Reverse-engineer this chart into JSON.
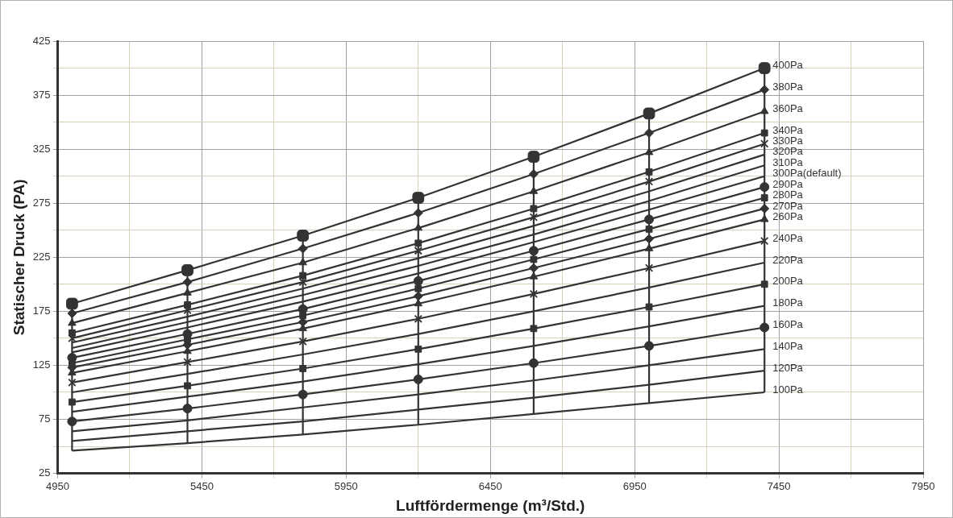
{
  "chart_data": {
    "type": "line",
    "xlabel": "Luftfördermenge (m³/Std.)",
    "ylabel": "Statischer Druck (PA)",
    "x": [
      5000,
      5400,
      5800,
      6200,
      6600,
      7000,
      7400
    ],
    "xlim": [
      4950,
      7950
    ],
    "xticks": [
      4950,
      {
        "value": 5200,
        "label": null
      },
      5450,
      {
        "value": 5700,
        "label": null
      },
      5950,
      {
        "value": 6200,
        "label": null
      },
      6450,
      {
        "value": 6700,
        "label": null
      },
      6950,
      {
        "value": 7200,
        "label": null
      },
      7450,
      {
        "value": 7700,
        "label": null
      },
      7950
    ],
    "ylim": [
      25,
      425
    ],
    "yticks": [
      25,
      {
        "value": 50,
        "label": null
      },
      75,
      {
        "value": 100,
        "label": null
      },
      125,
      {
        "value": 150,
        "label": null
      },
      175,
      {
        "value": 200,
        "label": null
      },
      225,
      {
        "value": 250,
        "label": null
      },
      275,
      {
        "value": 300,
        "label": null
      },
      325,
      {
        "value": 350,
        "label": null
      },
      375,
      {
        "value": 400,
        "label": null
      },
      425
    ],
    "grid": true,
    "legend": "right",
    "series": [
      {
        "name": "400Pa",
        "color": "#333333",
        "marker": "square",
        "values": [
          182,
          213,
          245,
          280,
          318,
          358,
          400
        ]
      },
      {
        "name": "380Pa",
        "color": "#333333",
        "marker": "diamond",
        "values": [
          173,
          202,
          233,
          266,
          302,
          340,
          380
        ]
      },
      {
        "name": "360Pa",
        "color": "#333333",
        "marker": "triangle",
        "values": [
          164,
          192,
          220,
          252,
          286,
          322,
          360
        ]
      },
      {
        "name": "340Pa",
        "color": "#333333",
        "marker": "square",
        "values": [
          155,
          181,
          208,
          238,
          270,
          304,
          340
        ]
      },
      {
        "name": "330Pa",
        "color": "#333333",
        "marker": "cross",
        "values": [
          150,
          176,
          202,
          231,
          262,
          295,
          330
        ]
      },
      {
        "name": "320Pa",
        "color": "#333333",
        "marker": "none",
        "values": [
          146,
          170,
          196,
          224,
          254,
          286,
          320
        ]
      },
      {
        "name": "310Pa",
        "color": "#333333",
        "marker": "none",
        "values": [
          141,
          165,
          190,
          217,
          246,
          277,
          310
        ]
      },
      {
        "name": "300Pa(default)",
        "color": "#333333",
        "marker": "none",
        "values": [
          137,
          160,
          184,
          210,
          239,
          269,
          300
        ]
      },
      {
        "name": "290Pa",
        "color": "#333333",
        "marker": "circle",
        "values": [
          132,
          154,
          177,
          203,
          231,
          260,
          290
        ]
      },
      {
        "name": "280Pa",
        "color": "#333333",
        "marker": "square",
        "values": [
          127,
          149,
          171,
          196,
          223,
          251,
          280
        ]
      },
      {
        "name": "270Pa",
        "color": "#333333",
        "marker": "diamond",
        "values": [
          123,
          144,
          165,
          189,
          215,
          242,
          270
        ]
      },
      {
        "name": "260Pa",
        "color": "#333333",
        "marker": "triangle",
        "values": [
          118,
          138,
          159,
          182,
          207,
          233,
          260
        ]
      },
      {
        "name": "240Pa",
        "color": "#333333",
        "marker": "cross",
        "values": [
          109,
          128,
          147,
          168,
          191,
          215,
          240
        ]
      },
      {
        "name": "220Pa",
        "color": "#333333",
        "marker": "none",
        "values": [
          100,
          117,
          135,
          154,
          175,
          197,
          220
        ]
      },
      {
        "name": "200Pa",
        "color": "#333333",
        "marker": "square",
        "values": [
          91,
          106,
          122,
          140,
          159,
          179,
          200
        ]
      },
      {
        "name": "180Pa",
        "color": "#333333",
        "marker": "none",
        "values": [
          82,
          96,
          110,
          126,
          143,
          161,
          180
        ]
      },
      {
        "name": "160Pa",
        "color": "#333333",
        "marker": "circle",
        "values": [
          73,
          85,
          98,
          112,
          127,
          143,
          160
        ]
      },
      {
        "name": "140Pa",
        "color": "#333333",
        "marker": "none",
        "values": [
          64,
          74,
          86,
          98,
          111,
          125,
          140
        ]
      },
      {
        "name": "120Pa",
        "color": "#333333",
        "marker": "none",
        "values": [
          55,
          64,
          73,
          84,
          95,
          107,
          120
        ]
      },
      {
        "name": "100Pa",
        "color": "#333333",
        "marker": "none",
        "values": [
          46,
          53,
          61,
          70,
          80,
          90,
          100
        ]
      },
      {
        "type": "line",
        "color": "#333333",
        "marker": "none",
        "x": [
          5000,
          5000
        ],
        "values": [
          46,
          182
        ]
      },
      {
        "type": "line",
        "color": "#333333",
        "marker": "none",
        "x": [
          5400,
          5400
        ],
        "values": [
          53,
          213
        ]
      },
      {
        "type": "line",
        "color": "#333333",
        "marker": "none",
        "x": [
          5800,
          5800
        ],
        "values": [
          61,
          245
        ]
      },
      {
        "type": "line",
        "color": "#333333",
        "marker": "none",
        "x": [
          6200,
          6200
        ],
        "values": [
          70,
          280
        ]
      },
      {
        "type": "line",
        "color": "#333333",
        "marker": "none",
        "x": [
          6600,
          6600
        ],
        "values": [
          80,
          318
        ]
      },
      {
        "type": "line",
        "color": "#333333",
        "marker": "none",
        "x": [
          7000,
          7000
        ],
        "values": [
          90,
          358
        ]
      },
      {
        "type": "line",
        "color": "#333333",
        "marker": "none",
        "x": [
          7400,
          7400
        ],
        "values": [
          100,
          400
        ]
      }
    ]
  }
}
